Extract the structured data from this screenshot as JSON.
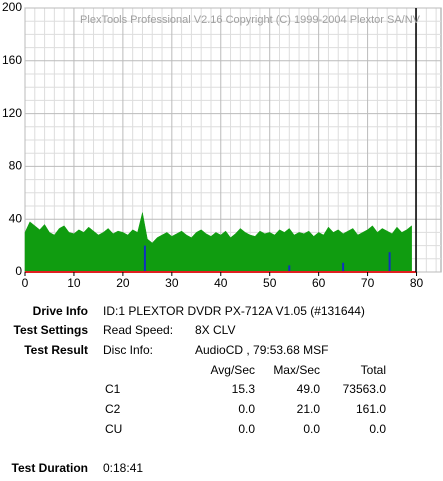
{
  "chart_data": {
    "type": "area",
    "watermark": "PlexTools Professional V2.16 Copyright (C) 1999-2004 Plextor SA/NV",
    "xlim": [
      0,
      85
    ],
    "ylim": [
      0,
      200
    ],
    "xticks": [
      0,
      10,
      20,
      30,
      40,
      50,
      60,
      70,
      80
    ],
    "yticks": [
      0,
      40,
      80,
      120,
      160,
      200
    ],
    "x_minor_ticks": [
      2,
      4,
      6,
      8,
      12,
      14,
      16,
      18,
      22,
      24,
      26,
      28,
      32,
      34,
      36,
      38,
      42,
      44,
      46,
      48,
      52,
      54,
      56,
      58,
      62,
      64,
      66,
      68,
      72,
      74,
      76,
      78,
      82,
      84
    ],
    "y_minor_ticks": [
      10,
      20,
      30,
      50,
      60,
      70,
      90,
      100,
      110,
      130,
      140,
      150,
      170,
      180,
      190
    ],
    "end_marker": 79.89,
    "series": [
      {
        "name": "C1",
        "color": "#109c10",
        "x": [
          0,
          1,
          2,
          3,
          4,
          5,
          6,
          7,
          8,
          9,
          10,
          11,
          12,
          13,
          14,
          15,
          16,
          17,
          18,
          19,
          20,
          21,
          22,
          23,
          24,
          25,
          26,
          27,
          28,
          29,
          30,
          31,
          32,
          33,
          34,
          35,
          36,
          37,
          38,
          39,
          40,
          41,
          42,
          43,
          44,
          45,
          46,
          47,
          48,
          49,
          50,
          51,
          52,
          53,
          54,
          55,
          56,
          57,
          58,
          59,
          60,
          61,
          62,
          63,
          64,
          65,
          66,
          67,
          68,
          69,
          70,
          71,
          72,
          73,
          74,
          75,
          76,
          77,
          78,
          79
        ],
        "values": [
          30,
          38,
          35,
          32,
          36,
          30,
          28,
          33,
          35,
          30,
          29,
          32,
          30,
          34,
          31,
          28,
          30,
          33,
          29,
          31,
          30,
          28,
          32,
          30,
          45,
          25,
          22,
          26,
          28,
          30,
          27,
          29,
          31,
          28,
          26,
          30,
          32,
          29,
          27,
          30,
          28,
          31,
          26,
          29,
          33,
          30,
          28,
          27,
          31,
          29,
          30,
          28,
          32,
          30,
          33,
          28,
          30,
          29,
          31,
          27,
          30,
          28,
          34,
          30,
          32,
          29,
          31,
          33,
          28,
          30,
          32,
          35,
          30,
          33,
          31,
          29,
          34,
          30,
          32,
          35
        ]
      },
      {
        "name": "C2",
        "color": "#1030c0",
        "x": [
          24.5,
          54,
          65,
          74.5
        ],
        "values": [
          20,
          5,
          7,
          15
        ]
      },
      {
        "name": "CU",
        "color": "#e02020",
        "x": [
          0,
          79.89
        ],
        "values": [
          0,
          0
        ]
      }
    ]
  },
  "info": {
    "drive_label": "Drive Info",
    "drive": "ID:1 PLEXTOR DVDR PX-712A V1.05 (#131644)",
    "settings_label": "Test Settings",
    "speed_label": "Read Speed:",
    "speed": "8X CLV",
    "result_label": "Test Result",
    "disc_label": "Disc Info:",
    "disc": "AudioCD , 79:53.68 MSF",
    "columns": [
      "Avg/Sec",
      "Max/Sec",
      "Total"
    ],
    "rows": [
      [
        "C1",
        "15.3",
        "49.0",
        "73563.0"
      ],
      [
        "C2",
        "0.0",
        "21.0",
        "161.0"
      ],
      [
        "CU",
        "0.0",
        "0.0",
        "0.0"
      ]
    ],
    "duration_label": "Test Duration",
    "duration": "0:18:41"
  }
}
